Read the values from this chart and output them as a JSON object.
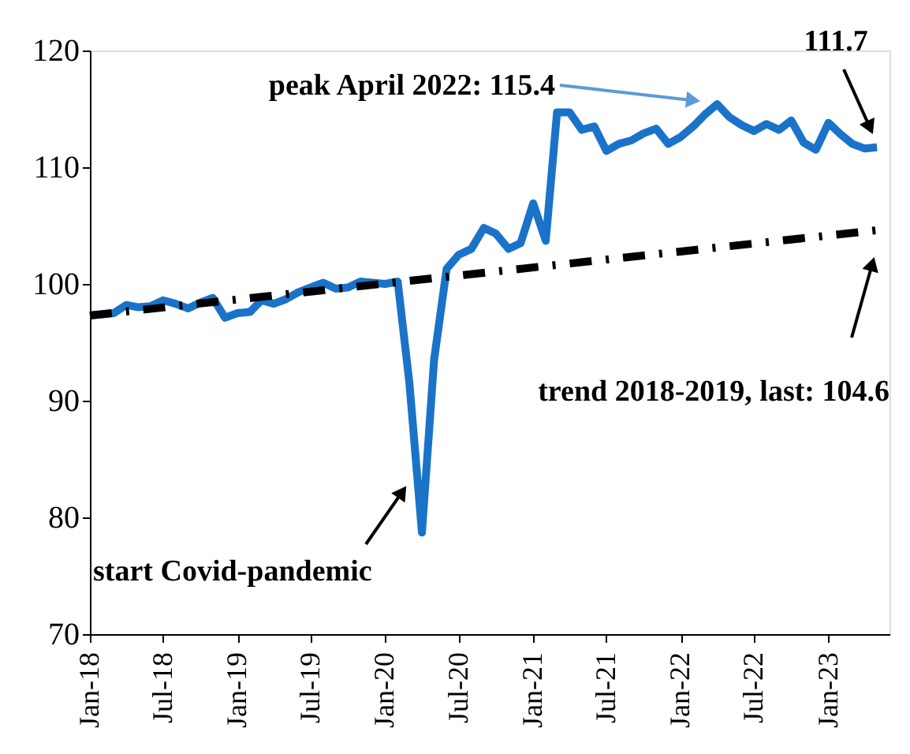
{
  "chart_data": {
    "type": "line",
    "x": [
      "2018-01",
      "2018-02",
      "2018-03",
      "2018-04",
      "2018-05",
      "2018-06",
      "2018-07",
      "2018-08",
      "2018-09",
      "2018-10",
      "2018-11",
      "2018-12",
      "2019-01",
      "2019-02",
      "2019-03",
      "2019-04",
      "2019-05",
      "2019-06",
      "2019-07",
      "2019-08",
      "2019-09",
      "2019-10",
      "2019-11",
      "2019-12",
      "2020-01",
      "2020-02",
      "2020-03",
      "2020-04",
      "2020-05",
      "2020-06",
      "2020-07",
      "2020-08",
      "2020-09",
      "2020-10",
      "2020-11",
      "2020-12",
      "2021-01",
      "2021-02",
      "2021-03",
      "2021-04",
      "2021-05",
      "2021-06",
      "2021-07",
      "2021-08",
      "2021-09",
      "2021-10",
      "2021-11",
      "2021-12",
      "2022-01",
      "2022-02",
      "2022-03",
      "2022-04",
      "2022-05",
      "2022-06",
      "2022-07",
      "2022-08",
      "2022-09",
      "2022-10",
      "2022-11",
      "2022-12",
      "2023-01",
      "2023-02",
      "2023-03",
      "2023-04",
      "2023-05"
    ],
    "series": [
      {
        "color": "#1a73c9",
        "line_style": "solid",
        "values": [
          97.3,
          97.4,
          97.5,
          98.2,
          98.0,
          98.1,
          98.6,
          98.3,
          97.9,
          98.4,
          98.8,
          97.1,
          97.5,
          97.6,
          98.6,
          98.3,
          98.7,
          99.3,
          99.7,
          100.1,
          99.6,
          99.7,
          100.2,
          100.1,
          100.0,
          100.2,
          91.5,
          78.7,
          93.5,
          101.3,
          102.5,
          103.0,
          104.8,
          104.3,
          103.0,
          103.5,
          106.9,
          103.7,
          114.7,
          114.7,
          113.2,
          113.5,
          111.4,
          112.0,
          112.3,
          112.9,
          113.3,
          112.0,
          112.6,
          113.5,
          114.5,
          115.4,
          114.3,
          113.6,
          113.1,
          113.7,
          113.2,
          114.0,
          112.1,
          111.5,
          113.8,
          112.8,
          112.0,
          111.6,
          111.7
        ]
      },
      {
        "color": "#000000",
        "line_style": "dashed",
        "x": [
          "2018-01",
          "2023-05"
        ],
        "values": [
          97.3,
          104.6
        ]
      }
    ],
    "xlim": [
      "2018-01",
      "2023-06"
    ],
    "xticks": [
      {
        "value": "2018-01",
        "label": "Jan-18"
      },
      {
        "value": "2018-07",
        "label": "Jul-18"
      },
      {
        "value": "2019-01",
        "label": "Jan-19"
      },
      {
        "value": "2019-07",
        "label": "Jul-19"
      },
      {
        "value": "2020-01",
        "label": "Jan-20"
      },
      {
        "value": "2020-07",
        "label": "Jul-20"
      },
      {
        "value": "2021-01",
        "label": "Jan-21"
      },
      {
        "value": "2021-07",
        "label": "Jul-21"
      },
      {
        "value": "2022-01",
        "label": "Jan-22"
      },
      {
        "value": "2022-07",
        "label": "Jul-22"
      },
      {
        "value": "2023-01",
        "label": "Jan-23"
      }
    ],
    "ylim": [
      70,
      120
    ],
    "yticks": [
      70,
      80,
      90,
      100,
      110,
      120
    ],
    "grid": false,
    "annotations": [
      "peak April 2022: 115.4",
      "111.7",
      "trend 2018-2019, last: 104.6",
      "start Covid-pandemic"
    ]
  }
}
